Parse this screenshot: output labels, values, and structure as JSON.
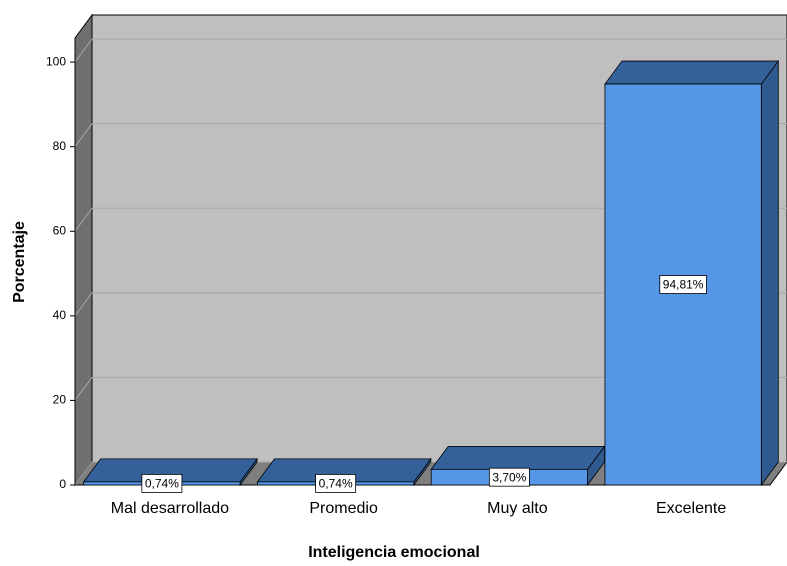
{
  "chart_data": {
    "type": "bar3d",
    "x_label": "Inteligencia emocional",
    "y_label": "Porcentaje",
    "categories": [
      "Mal desarrollado",
      "Promedio",
      "Muy alto",
      "Excelente"
    ],
    "values": [
      0.74,
      0.74,
      3.7,
      94.81
    ],
    "value_labels": [
      "0,74%",
      "0,74%",
      "3,70%",
      "94,81%"
    ],
    "color": "#5596e6",
    "ylim": [
      0,
      105.7
    ],
    "yticks": [
      0,
      20,
      40,
      60,
      80,
      100
    ],
    "grid": true
  }
}
